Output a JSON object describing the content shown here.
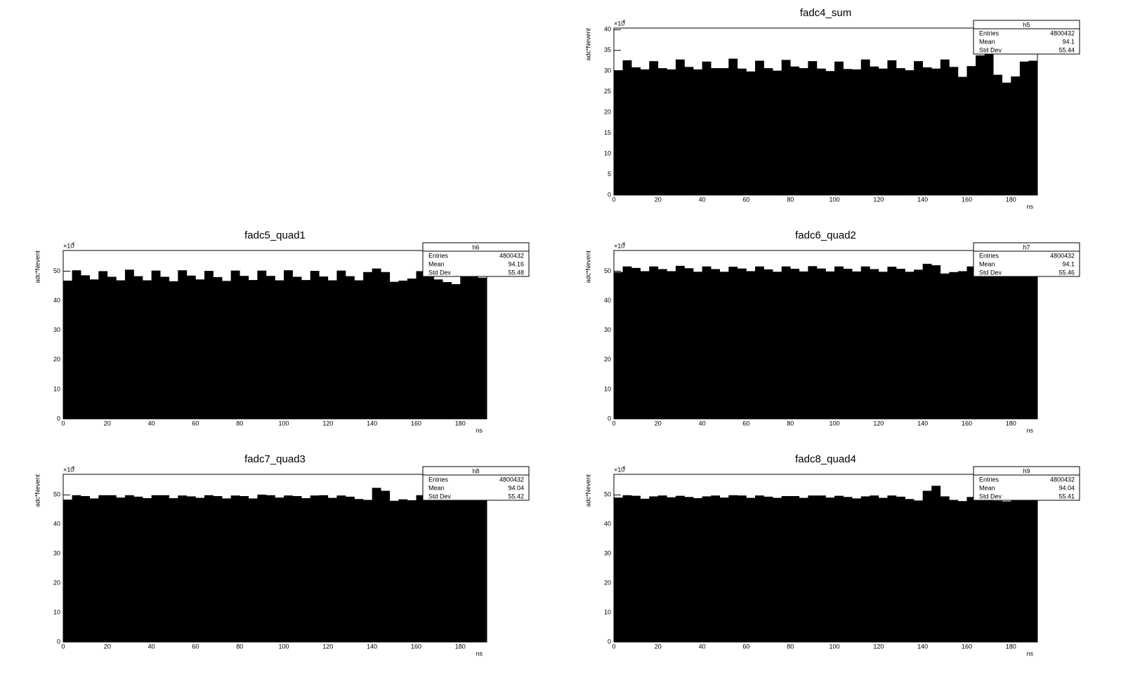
{
  "chart_data": [
    {
      "type": "histogram",
      "title": "fadc4_sum",
      "ylabel": "adc*Nevent",
      "xlabel": "ns",
      "y_multiplier": "×10",
      "y_multiplier_exponent": "6",
      "color": "#000000",
      "bins": [
        0,
        4,
        8,
        12,
        16,
        20,
        24,
        28,
        32,
        36,
        40,
        44,
        48,
        52,
        56,
        60,
        64,
        68,
        72,
        76,
        80,
        84,
        88,
        92,
        96,
        100,
        104,
        108,
        112,
        116,
        120,
        124,
        128,
        132,
        136,
        140,
        144,
        148,
        152,
        156,
        160,
        164,
        168,
        172,
        176,
        180,
        184,
        188,
        192
      ],
      "values": [
        30.2,
        32.6,
        30.9,
        30.4,
        32.4,
        30.7,
        30.4,
        32.8,
        31.0,
        30.4,
        32.3,
        30.7,
        30.7,
        33.0,
        30.6,
        29.9,
        32.5,
        30.7,
        30.1,
        32.7,
        31.1,
        30.7,
        32.4,
        30.6,
        30.0,
        32.3,
        30.5,
        30.4,
        32.8,
        31.1,
        30.6,
        32.6,
        30.7,
        30.2,
        32.4,
        30.9,
        30.6,
        32.8,
        31.0,
        28.6,
        31.2,
        33.8,
        38.0,
        29.1,
        27.2,
        28.7,
        32.3,
        32.5
      ],
      "xlim": [
        0,
        192
      ],
      "xticks": [
        0,
        20,
        40,
        60,
        80,
        100,
        120,
        140,
        160,
        180
      ],
      "ylim": [
        0,
        40.4
      ],
      "yticks": [
        0,
        5,
        10,
        15,
        20,
        25,
        30,
        35,
        40
      ],
      "stats": {
        "name": "h5",
        "entries_label": "Entries",
        "entries": 4800432,
        "mean_label": "Mean",
        "mean": 94.1,
        "std_dev_label": "Std Dev",
        "std_dev": 55.44
      }
    },
    {
      "type": "histogram",
      "title": "fadc5_quad1",
      "ylabel": "adc*Nevent",
      "xlabel": "ns",
      "y_multiplier": "×10",
      "y_multiplier_exponent": "6",
      "color": "#000000",
      "bins": [
        0,
        4,
        8,
        12,
        16,
        20,
        24,
        28,
        32,
        36,
        40,
        44,
        48,
        52,
        56,
        60,
        64,
        68,
        72,
        76,
        80,
        84,
        88,
        92,
        96,
        100,
        104,
        108,
        112,
        116,
        120,
        124,
        128,
        132,
        136,
        140,
        144,
        148,
        152,
        156,
        160,
        164,
        168,
        172,
        176,
        180,
        184,
        188,
        192
      ],
      "values": [
        46.8,
        50.3,
        48.6,
        47.2,
        50.0,
        48.1,
        46.9,
        50.5,
        48.3,
        46.9,
        50.2,
        48.1,
        46.6,
        50.3,
        48.5,
        47.2,
        50.1,
        48.0,
        46.7,
        50.2,
        48.4,
        47.0,
        50.2,
        48.4,
        46.9,
        50.3,
        48.1,
        47.0,
        50.1,
        48.2,
        46.9,
        50.2,
        48.3,
        46.9,
        49.7,
        50.9,
        49.7,
        46.4,
        46.8,
        47.5,
        50.0,
        49.0,
        47.2,
        46.3,
        45.6,
        48.5,
        48.8,
        47.8
      ],
      "xlim": [
        0,
        192
      ],
      "xticks": [
        0,
        20,
        40,
        60,
        80,
        100,
        120,
        140,
        160,
        180
      ],
      "ylim": [
        0,
        57
      ],
      "yticks": [
        0,
        10,
        20,
        30,
        40,
        50
      ],
      "stats": {
        "name": "h6",
        "entries_label": "Entries",
        "entries": 4800432,
        "mean_label": "Mean",
        "mean": 94.16,
        "std_dev_label": "Std Dev",
        "std_dev": 55.48
      }
    },
    {
      "type": "histogram",
      "title": "fadc6_quad2",
      "ylabel": "adc*Nevent",
      "xlabel": "ns",
      "y_multiplier": "×10",
      "y_multiplier_exponent": "6",
      "color": "#000000",
      "bins": [
        0,
        4,
        8,
        12,
        16,
        20,
        24,
        28,
        32,
        36,
        40,
        44,
        48,
        52,
        56,
        60,
        64,
        68,
        72,
        76,
        80,
        84,
        88,
        92,
        96,
        100,
        104,
        108,
        112,
        116,
        120,
        124,
        128,
        132,
        136,
        140,
        144,
        148,
        152,
        156,
        160,
        164,
        168,
        172,
        176,
        180,
        184,
        188,
        192
      ],
      "values": [
        49.7,
        51.6,
        51.1,
        50.0,
        51.6,
        50.7,
        50.0,
        51.8,
        51.0,
        49.8,
        51.6,
        50.7,
        49.8,
        51.5,
        50.9,
        50.0,
        51.6,
        50.6,
        49.8,
        51.6,
        50.8,
        49.9,
        51.7,
        50.9,
        49.9,
        51.6,
        50.8,
        49.9,
        51.6,
        50.7,
        49.8,
        51.5,
        50.8,
        49.8,
        50.5,
        52.5,
        52.0,
        49.2,
        49.7,
        50.0,
        51.6,
        50.5,
        49.6,
        49.2,
        49.1,
        50.4,
        50.8,
        50.3
      ],
      "xlim": [
        0,
        192
      ],
      "xticks": [
        0,
        20,
        40,
        60,
        80,
        100,
        120,
        140,
        160,
        180
      ],
      "ylim": [
        0,
        57
      ],
      "yticks": [
        0,
        10,
        20,
        30,
        40,
        50
      ],
      "stats": {
        "name": "h7",
        "entries_label": "Entries",
        "entries": 4800432,
        "mean_label": "Mean",
        "mean": 94.1,
        "std_dev_label": "Std Dev",
        "std_dev": 55.46
      }
    },
    {
      "type": "histogram",
      "title": "fadc7_quad3",
      "ylabel": "adc*Nevent",
      "xlabel": "ns",
      "y_multiplier": "×10",
      "y_multiplier_exponent": "6",
      "color": "#000000",
      "bins": [
        0,
        4,
        8,
        12,
        16,
        20,
        24,
        28,
        32,
        36,
        40,
        44,
        48,
        52,
        56,
        60,
        64,
        68,
        72,
        76,
        80,
        84,
        88,
        92,
        96,
        100,
        104,
        108,
        112,
        116,
        120,
        124,
        128,
        132,
        136,
        140,
        144,
        148,
        152,
        156,
        160,
        164,
        168,
        172,
        176,
        180,
        184,
        188,
        192
      ],
      "values": [
        48.4,
        49.9,
        49.6,
        48.8,
        49.9,
        49.9,
        49.1,
        49.9,
        49.4,
        48.9,
        49.9,
        49.9,
        48.9,
        49.8,
        49.5,
        49.0,
        49.9,
        49.6,
        48.8,
        49.8,
        49.6,
        48.8,
        50.1,
        49.9,
        49.1,
        49.8,
        49.6,
        48.9,
        49.8,
        49.9,
        49.0,
        49.8,
        49.4,
        48.6,
        48.3,
        52.4,
        51.4,
        48.0,
        48.5,
        48.2,
        49.9,
        49.2,
        48.3,
        48.1,
        48.1,
        49.5,
        50.2,
        49.6
      ],
      "xlim": [
        0,
        192
      ],
      "xticks": [
        0,
        20,
        40,
        60,
        80,
        100,
        120,
        140,
        160,
        180
      ],
      "ylim": [
        0,
        57
      ],
      "yticks": [
        0,
        10,
        20,
        30,
        40,
        50
      ],
      "stats": {
        "name": "h8",
        "entries_label": "Entries",
        "entries": 4800432,
        "mean_label": "Mean",
        "mean": 94.04,
        "std_dev_label": "Std Dev",
        "std_dev": 55.42
      }
    },
    {
      "type": "histogram",
      "title": "fadc8_quad4",
      "ylabel": "adc*Nevent",
      "xlabel": "ns",
      "y_multiplier": "×10",
      "y_multiplier_exponent": "6",
      "color": "#000000",
      "bins": [
        0,
        4,
        8,
        12,
        16,
        20,
        24,
        28,
        32,
        36,
        40,
        44,
        48,
        52,
        56,
        60,
        64,
        68,
        72,
        76,
        80,
        84,
        88,
        92,
        96,
        100,
        104,
        108,
        112,
        116,
        120,
        124,
        128,
        132,
        136,
        140,
        144,
        148,
        152,
        156,
        160,
        164,
        168,
        172,
        176,
        180,
        184,
        188,
        192
      ],
      "values": [
        49.1,
        49.9,
        49.7,
        48.7,
        49.5,
        49.8,
        49.2,
        49.7,
        49.3,
        48.9,
        49.5,
        49.8,
        49.1,
        49.9,
        49.8,
        49.0,
        49.8,
        49.4,
        49.0,
        49.6,
        49.6,
        49.0,
        49.8,
        49.8,
        49.1,
        49.7,
        49.3,
        48.8,
        49.5,
        49.8,
        49.0,
        49.8,
        49.4,
        48.6,
        48.1,
        51.4,
        53.1,
        49.5,
        48.3,
        47.9,
        49.3,
        49.5,
        48.4,
        48.0,
        47.8,
        49.1,
        49.8,
        49.5
      ],
      "xlim": [
        0,
        192
      ],
      "xticks": [
        0,
        20,
        40,
        60,
        80,
        100,
        120,
        140,
        160,
        180
      ],
      "ylim": [
        0,
        57
      ],
      "yticks": [
        0,
        10,
        20,
        30,
        40,
        50
      ],
      "stats": {
        "name": "h9",
        "entries_label": "Entries",
        "entries": 4800432,
        "mean_label": "Mean",
        "mean": 94.04,
        "std_dev_label": "Std Dev",
        "std_dev": 55.41
      }
    }
  ]
}
